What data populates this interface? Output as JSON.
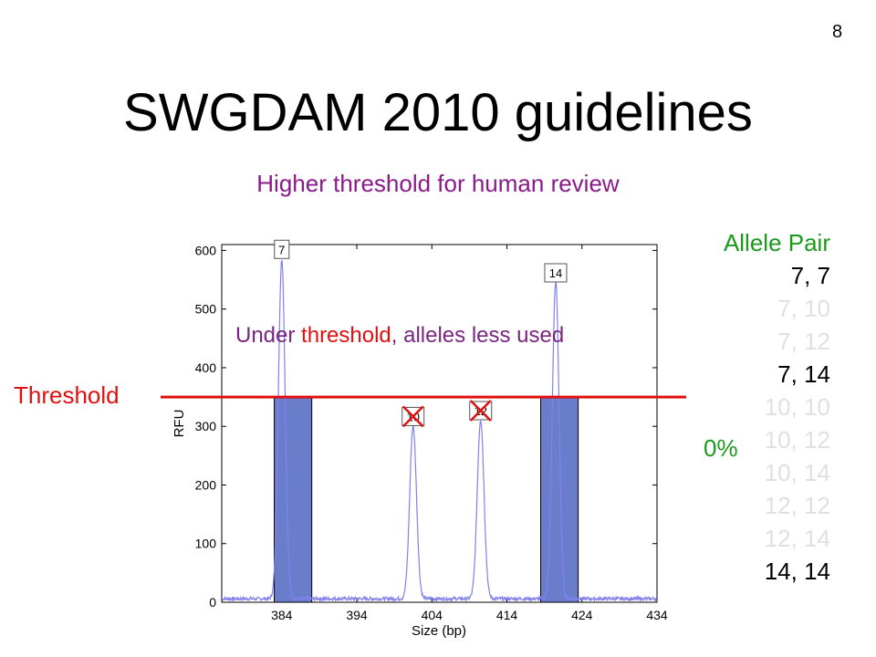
{
  "slide_number": "8",
  "title": "SWGDAM 2010 guidelines",
  "subtitle": "Higher threshold for human review",
  "threshold_label": "Threshold",
  "under_threshold_note": {
    "part1": "Under ",
    "part2": "threshold",
    "part3": ", alleles less used"
  },
  "percent_label": "0%",
  "allele_pairs": {
    "header": "Allele Pair",
    "items": [
      {
        "label": "7,   7",
        "color": "#000000"
      },
      {
        "label": "7, 10",
        "color": "#e0e0e0"
      },
      {
        "label": "7, 12",
        "color": "#e0e0e0"
      },
      {
        "label": "7, 14",
        "color": "#000000"
      },
      {
        "label": "10, 10",
        "color": "#e0e0e0"
      },
      {
        "label": "10, 12",
        "color": "#e0e0e0"
      },
      {
        "label": "10, 14",
        "color": "#e0e0e0"
      },
      {
        "label": "12, 12",
        "color": "#e0e0e0"
      },
      {
        "label": "12, 14",
        "color": "#e0e0e0"
      },
      {
        "label": "14, 14",
        "color": "#000000"
      }
    ]
  },
  "colors": {
    "trace": "#8080f0",
    "bar": "#6a7dca",
    "threshold_line": "#e01010",
    "cross": "#e01010"
  },
  "chart_data": {
    "type": "line",
    "xlabel": "Size (bp)",
    "ylabel": "RFU",
    "xlim": [
      376,
      434
    ],
    "ylim": [
      0,
      610
    ],
    "xticks": [
      384,
      394,
      404,
      414,
      424,
      434
    ],
    "yticks": [
      0,
      100,
      200,
      300,
      400,
      500,
      600
    ],
    "threshold": 350,
    "peaks": [
      {
        "allele": "7",
        "x": 384,
        "height": 580,
        "crossed": false
      },
      {
        "allele": "10",
        "x": 401.5,
        "height": 295,
        "crossed": true
      },
      {
        "allele": "12",
        "x": 410.5,
        "height": 305,
        "crossed": true
      },
      {
        "allele": "14",
        "x": 420.5,
        "height": 540,
        "crossed": false
      }
    ],
    "bars": [
      {
        "x0": 383,
        "x1": 388,
        "value": 350
      },
      {
        "x0": 418.5,
        "x1": 423.5,
        "value": 350
      }
    ]
  }
}
